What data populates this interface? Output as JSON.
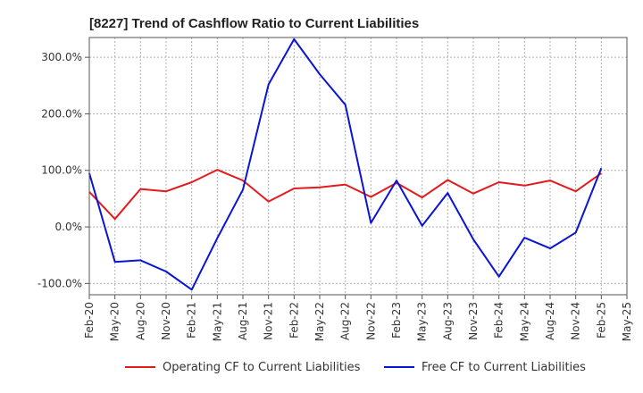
{
  "chart_data": {
    "type": "line",
    "title": "[8227]  Trend of Cashflow Ratio to Current Liabilities",
    "xlabel": "",
    "ylabel": "",
    "x": [
      "Feb-20",
      "May-20",
      "Aug-20",
      "Nov-20",
      "Feb-21",
      "May-21",
      "Aug-21",
      "Nov-21",
      "Feb-22",
      "May-22",
      "Aug-22",
      "Nov-22",
      "Feb-23",
      "May-23",
      "Aug-23",
      "Nov-23",
      "Feb-24",
      "May-24",
      "Aug-24",
      "Nov-24",
      "Feb-25",
      "May-25"
    ],
    "x_tick_labels": [
      "Feb-20",
      "May-20",
      "Aug-20",
      "Nov-20",
      "Feb-21",
      "May-21",
      "Aug-21",
      "Nov-21",
      "Feb-22",
      "May-22",
      "Aug-22",
      "Nov-22",
      "Feb-23",
      "May-23",
      "Aug-23",
      "Nov-23",
      "Feb-24",
      "May-24",
      "Aug-24",
      "Nov-24",
      "Feb-25",
      "May-25"
    ],
    "y_ticks": [
      -100,
      0,
      100,
      200,
      300
    ],
    "y_tick_labels": [
      "-100.0%",
      "0.0%",
      "100.0%",
      "200.0%",
      "300.0%"
    ],
    "ylim": [
      -120,
      335
    ],
    "grid": true,
    "legend_position": "bottom",
    "series": [
      {
        "name": "Operating CF to Current Liabilities",
        "color": "#e31a1c",
        "values": [
          62,
          14,
          67,
          63,
          79,
          101,
          82,
          45,
          68,
          70,
          75,
          53,
          78,
          52,
          83,
          59,
          79,
          73,
          82,
          63,
          95,
          null
        ]
      },
      {
        "name": "Free CF to Current Liabilities",
        "color": "#0a14d6",
        "values": [
          95,
          -62,
          -59,
          -79,
          -111,
          -20,
          66,
          252,
          332,
          270,
          216,
          7,
          82,
          2,
          60,
          -22,
          -88,
          -19,
          -38,
          -10,
          104,
          null
        ]
      }
    ]
  }
}
